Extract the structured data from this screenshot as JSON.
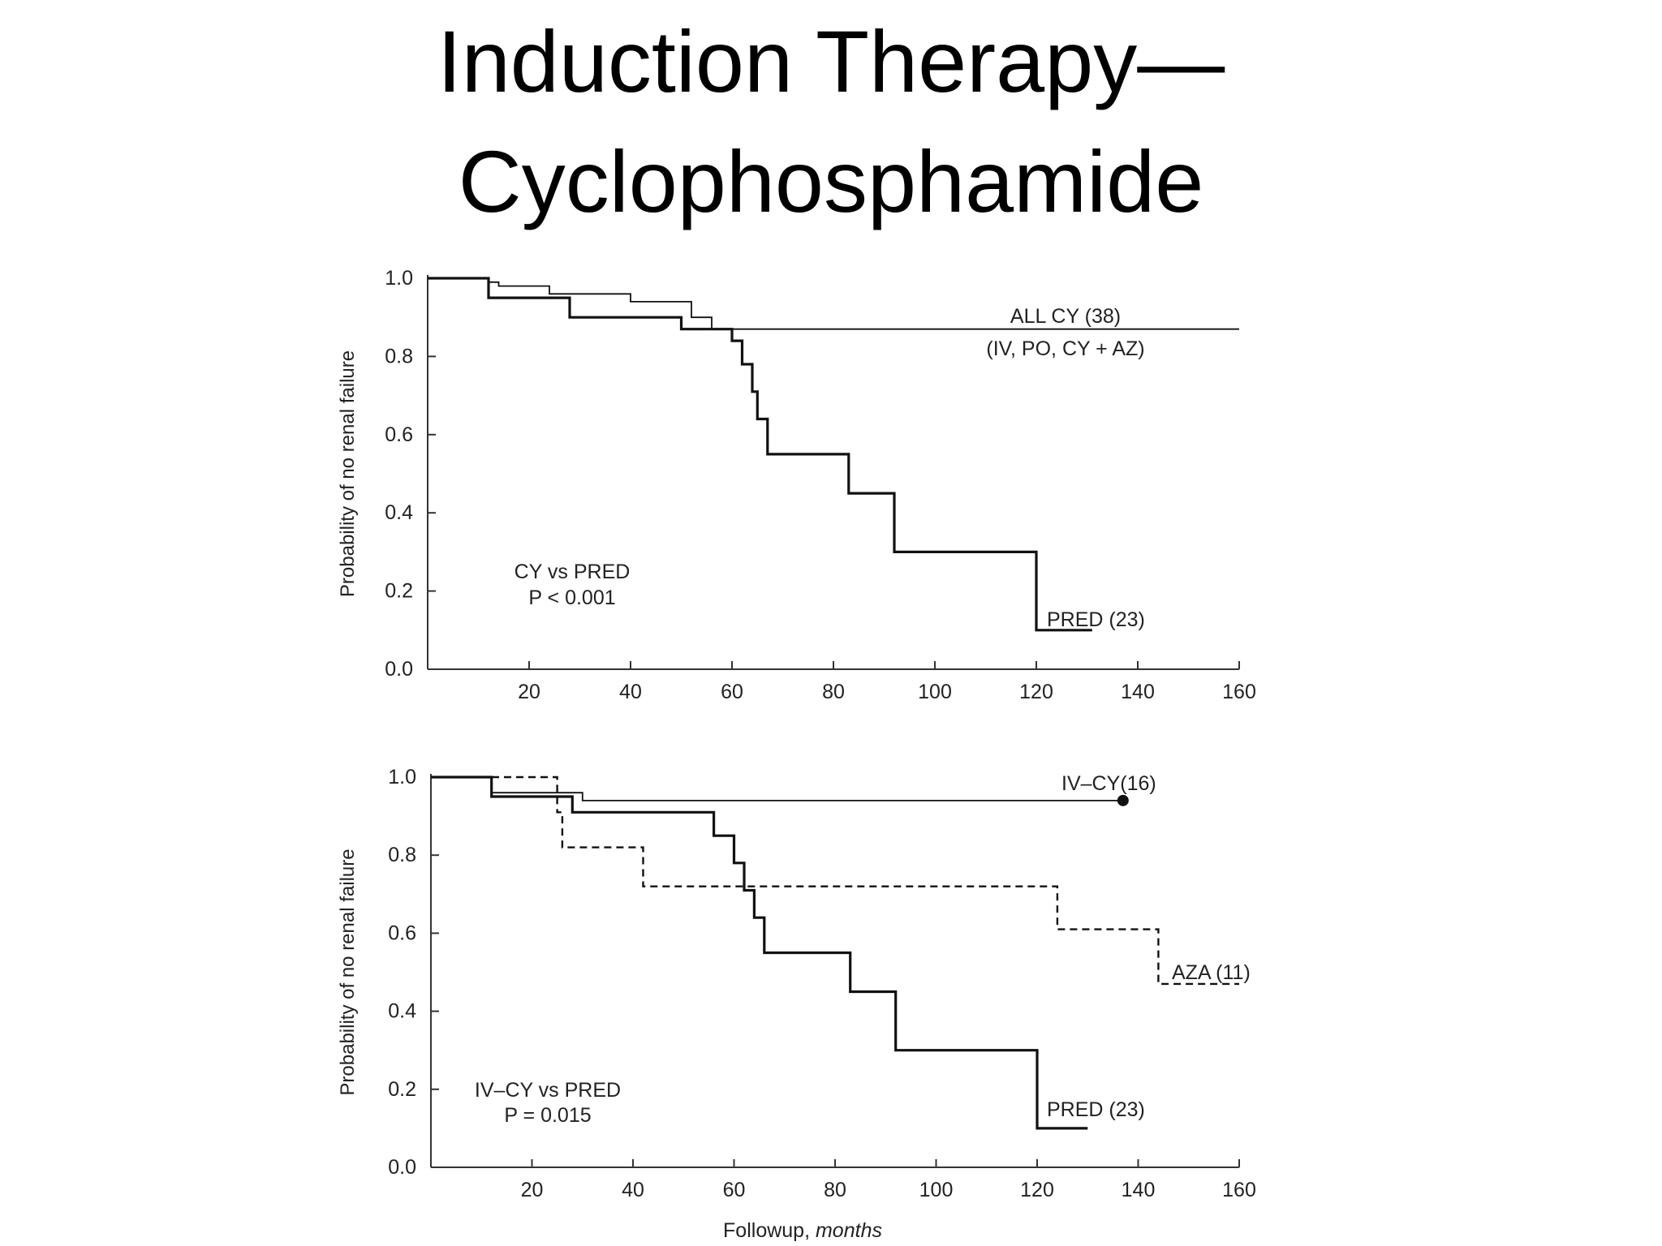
{
  "slide": {
    "title_line1": "Induction Therapy—",
    "title_line2": "Cyclophosphamide"
  },
  "chart_data": [
    {
      "type": "line",
      "step": true,
      "xlabel": "",
      "ylabel": "Probability of no renal failure",
      "xlim": [
        0,
        160
      ],
      "ylim": [
        0,
        1.0
      ],
      "xticks": [
        20,
        40,
        60,
        80,
        100,
        120,
        140,
        160
      ],
      "yticks": [
        0.0,
        0.2,
        0.4,
        0.6,
        0.8,
        1.0
      ],
      "series": [
        {
          "name": "ALL CY (38)",
          "sublabel": "(IV, PO, CY + AZ)",
          "style": "solid-thin",
          "x": [
            0,
            12,
            12,
            14,
            14,
            24,
            24,
            40,
            40,
            52,
            52,
            56,
            56,
            160
          ],
          "y": [
            1.0,
            1.0,
            0.99,
            0.99,
            0.98,
            0.98,
            0.96,
            0.96,
            0.94,
            0.94,
            0.9,
            0.9,
            0.87,
            0.87
          ]
        },
        {
          "name": "PRED (23)",
          "style": "solid-thick",
          "x": [
            0,
            12,
            12,
            28,
            28,
            50,
            50,
            60,
            60,
            62,
            62,
            64,
            64,
            65,
            65,
            67,
            67,
            83,
            83,
            92,
            92,
            120,
            120,
            131
          ],
          "y": [
            1.0,
            1.0,
            0.95,
            0.95,
            0.9,
            0.9,
            0.87,
            0.87,
            0.84,
            0.84,
            0.78,
            0.78,
            0.71,
            0.71,
            0.64,
            0.64,
            0.55,
            0.55,
            0.45,
            0.45,
            0.3,
            0.3,
            0.1,
            0.1
          ]
        }
      ],
      "annotation": {
        "line1": "CY vs PRED",
        "line2": "P < 0.001"
      }
    },
    {
      "type": "line",
      "step": true,
      "xlabel": "Followup, months",
      "ylabel": "Probability of no renal failure",
      "xlim": [
        0,
        160
      ],
      "ylim": [
        0,
        1.0
      ],
      "xticks": [
        20,
        40,
        60,
        80,
        100,
        120,
        140,
        160
      ],
      "yticks": [
        0.0,
        0.2,
        0.4,
        0.6,
        0.8,
        1.0
      ],
      "series": [
        {
          "name": "IV–CY(16)",
          "style": "solid-thin",
          "end_marker": true,
          "x": [
            0,
            12,
            12,
            30,
            30,
            137
          ],
          "y": [
            1.0,
            1.0,
            0.96,
            0.96,
            0.94,
            0.94
          ]
        },
        {
          "name": "AZA (11)",
          "style": "dashed",
          "x": [
            0,
            25,
            25,
            26,
            26,
            42,
            42,
            124,
            124,
            144,
            144,
            160
          ],
          "y": [
            1.0,
            1.0,
            0.91,
            0.91,
            0.82,
            0.82,
            0.72,
            0.72,
            0.61,
            0.61,
            0.47,
            0.47
          ]
        },
        {
          "name": "PRED (23)",
          "style": "solid-thick",
          "x": [
            0,
            12,
            12,
            28,
            28,
            56,
            56,
            60,
            60,
            62,
            62,
            64,
            64,
            66,
            66,
            83,
            83,
            92,
            92,
            120,
            120,
            130
          ],
          "y": [
            1.0,
            1.0,
            0.95,
            0.95,
            0.91,
            0.91,
            0.85,
            0.85,
            0.78,
            0.78,
            0.71,
            0.71,
            0.64,
            0.64,
            0.55,
            0.55,
            0.45,
            0.45,
            0.3,
            0.3,
            0.1,
            0.1
          ]
        }
      ],
      "annotation": {
        "line1": "IV–CY vs PRED",
        "line2": "P = 0.015"
      }
    }
  ]
}
